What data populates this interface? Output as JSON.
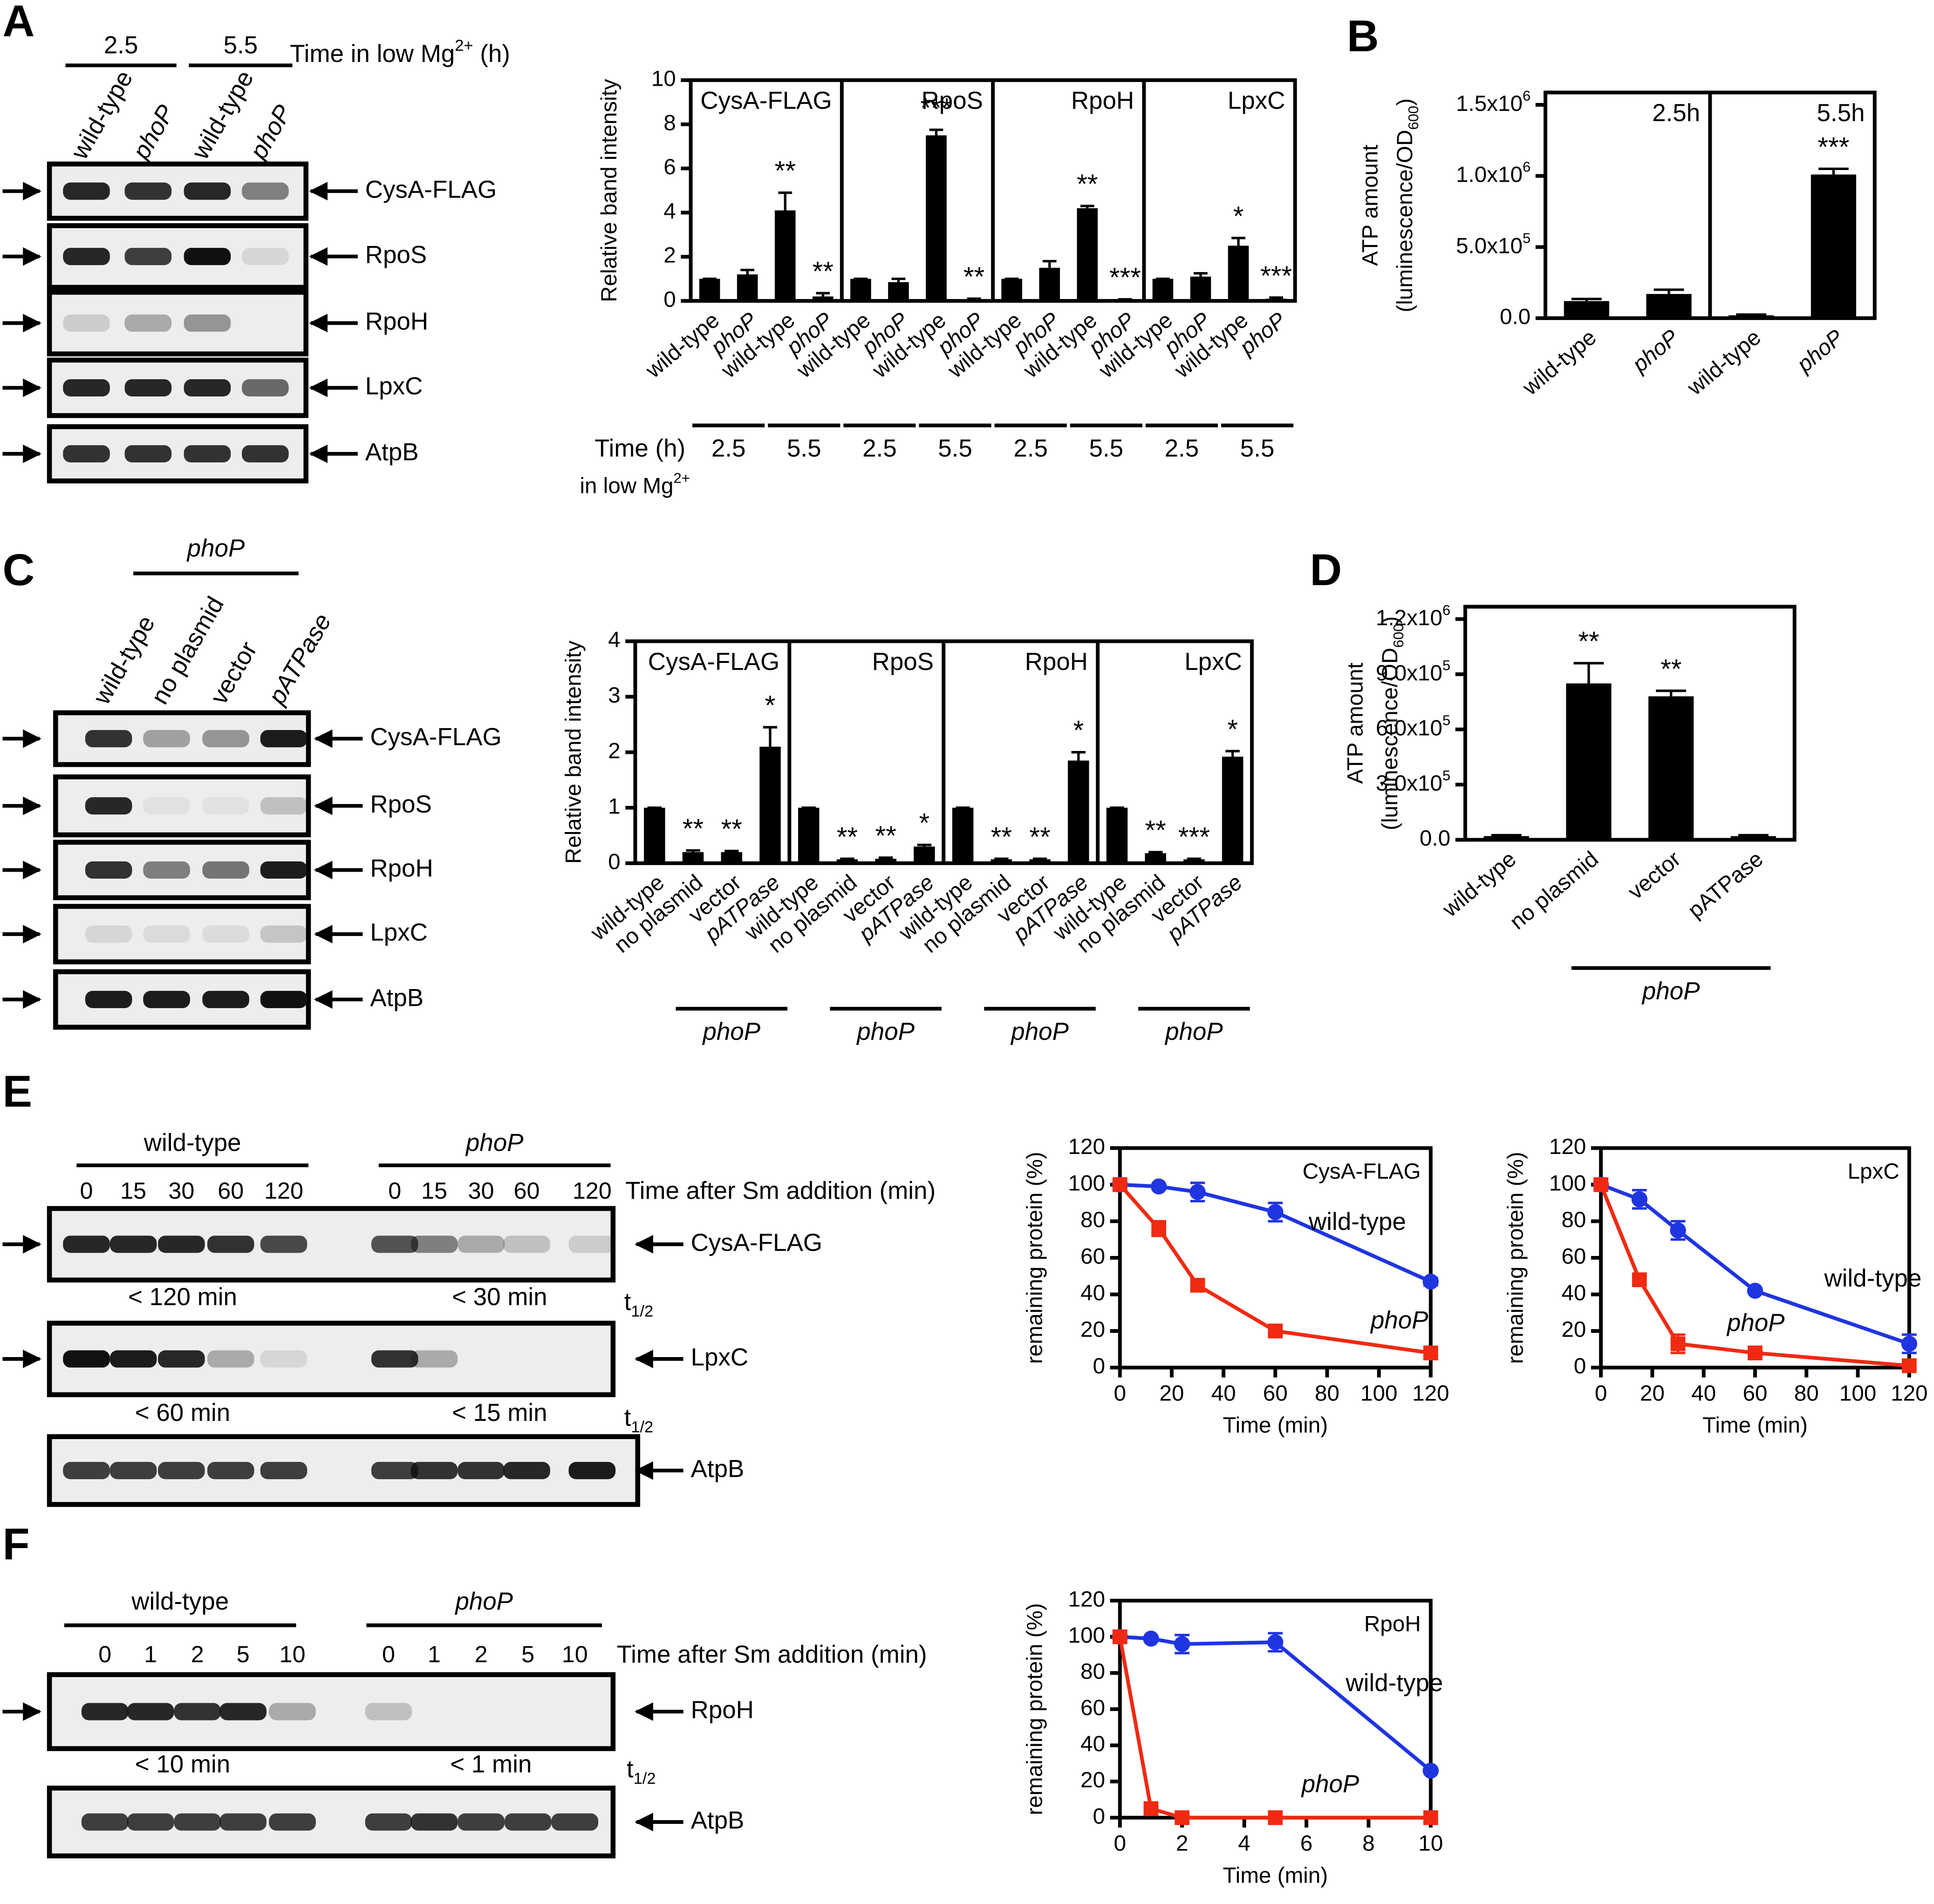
{
  "panel_labels": [
    "A",
    "B",
    "C",
    "D",
    "E",
    "F"
  ],
  "chart_data": [
    {
      "type": "bar",
      "ylabel": "Relative band intensity",
      "ylim": [
        0,
        10
      ],
      "yticks": [
        0,
        2,
        4,
        6,
        8,
        10
      ],
      "categories": [
        "wild-type",
        "phoP",
        "wild-type",
        "phoP"
      ],
      "italic_categories": [
        1,
        3
      ],
      "groups": [
        "2.5",
        "5.5"
      ],
      "x_caption": "Time (h)",
      "x_caption2": [
        "in low Mg",
        "2+"
      ],
      "color": "#000000",
      "facets": [
        {
          "title": "CysA-FLAG",
          "values": [
            1,
            1.2,
            4.1,
            0.2
          ],
          "errors": [
            0,
            0.2,
            0.8,
            0.15
          ],
          "significance": [
            null,
            null,
            "**",
            "**"
          ]
        },
        {
          "title": "RpoS",
          "values": [
            1,
            0.85,
            7.5,
            0.05
          ],
          "errors": [
            0,
            0.15,
            0.25,
            0.05
          ],
          "significance": [
            null,
            null,
            "***",
            "**"
          ]
        },
        {
          "title": "RpoH",
          "values": [
            1,
            1.5,
            4.2,
            0.05
          ],
          "errors": [
            0,
            0.3,
            0.1,
            0.02
          ],
          "significance": [
            null,
            null,
            "**",
            "***"
          ]
        },
        {
          "title": "LpxC",
          "values": [
            1,
            1.1,
            2.5,
            0.1
          ],
          "errors": [
            0,
            0.15,
            0.35,
            0.05
          ],
          "significance": [
            null,
            null,
            "*",
            "***"
          ]
        }
      ]
    },
    {
      "type": "bar",
      "ylabel": "ATP amount",
      "ylabel2": [
        "(luminescence/OD",
        "600",
        ")"
      ],
      "ylim": [
        0,
        1500000
      ],
      "yticks": [
        {
          "value": 0,
          "label": "0.0"
        },
        {
          "value": 500000,
          "label": "5.0x10",
          "exp": "5"
        },
        {
          "value": 1000000,
          "label": "1.0x10",
          "exp": "6"
        },
        {
          "value": 1500000,
          "label": "1.5x10",
          "exp": "6"
        }
      ],
      "categories": [
        "wild-type",
        "phoP"
      ],
      "italic_categories": [
        1
      ],
      "color": "#000000",
      "facets": [
        {
          "title": "2.5h",
          "values": [
            120000,
            170000
          ],
          "errors": [
            15000,
            30000
          ],
          "significance": [
            null,
            null
          ]
        },
        {
          "title": "5.5h",
          "values": [
            20000,
            1010000
          ],
          "errors": [
            5000,
            40000
          ],
          "significance": [
            null,
            "***"
          ]
        }
      ]
    },
    {
      "type": "bar",
      "ylabel": "Relative band intensity",
      "ylim": [
        0,
        4
      ],
      "yticks": [
        0,
        1,
        2,
        3,
        4
      ],
      "categories": [
        "wild-type",
        "no plasmid",
        "vector",
        "pATPase"
      ],
      "italic_categories": [
        3
      ],
      "groups": [
        "phoP"
      ],
      "italic_groups": [
        0
      ],
      "color": "#000000",
      "facets": [
        {
          "title": "CysA-FLAG",
          "values": [
            1,
            0.2,
            0.2,
            2.1
          ],
          "errors": [
            0,
            0.03,
            0.02,
            0.35
          ],
          "significance": [
            null,
            "**",
            "**",
            "*"
          ]
        },
        {
          "title": "RpoS",
          "values": [
            1,
            0.07,
            0.08,
            0.3
          ],
          "errors": [
            0,
            0.01,
            0.02,
            0.03
          ],
          "significance": [
            null,
            "**",
            "**",
            "*"
          ]
        },
        {
          "title": "RpoH",
          "values": [
            1,
            0.07,
            0.07,
            1.85
          ],
          "errors": [
            0,
            0.01,
            0.01,
            0.15
          ],
          "significance": [
            null,
            "**",
            "**",
            "*"
          ]
        },
        {
          "title": "LpxC",
          "values": [
            1,
            0.18,
            0.07,
            1.92
          ],
          "errors": [
            0,
            0.02,
            0.01,
            0.1
          ],
          "significance": [
            null,
            "**",
            "***",
            "*"
          ]
        }
      ]
    },
    {
      "type": "bar",
      "ylabel": "ATP amount",
      "ylabel2": [
        "(luminescence/OD",
        "600",
        ")"
      ],
      "ylim": [
        0,
        1200000
      ],
      "yticks": [
        {
          "value": 0,
          "label": "0.0"
        },
        {
          "value": 300000,
          "label": "3.0x10",
          "exp": "5"
        },
        {
          "value": 600000,
          "label": "6.0x10",
          "exp": "5"
        },
        {
          "value": 900000,
          "label": "9.0x10",
          "exp": "5"
        },
        {
          "value": 1200000,
          "label": "1.2x10",
          "exp": "6"
        }
      ],
      "categories": [
        "wild-type",
        "no plasmid",
        "vector",
        "pATPase"
      ],
      "groups": [
        "phoP"
      ],
      "italic_groups": [
        0
      ],
      "color": "#000000",
      "facets": [
        {
          "values": [
            20000,
            850000,
            780000,
            20000
          ],
          "errors": [
            5000,
            110000,
            30000,
            5000
          ],
          "significance": [
            null,
            "**",
            "**",
            null
          ]
        }
      ]
    },
    {
      "type": "line",
      "title": "CysA-FLAG",
      "xlabel": "Time (min)",
      "ylabel": "remaining protein (%)",
      "x": [
        0,
        15,
        30,
        60,
        120
      ],
      "xlim": [
        0,
        120
      ],
      "xticks": [
        0,
        20,
        40,
        60,
        80,
        100,
        120
      ],
      "ylim": [
        0,
        120
      ],
      "yticks": [
        0,
        20,
        40,
        60,
        80,
        100,
        120
      ],
      "series": [
        {
          "name": "wild-type",
          "color": "#1f35e0",
          "marker": "circle",
          "values": [
            100,
            99,
            96,
            85,
            47
          ],
          "errors": [
            0,
            1,
            5,
            5,
            2
          ]
        },
        {
          "name": "phoP",
          "color": "#f02a12",
          "marker": "square",
          "italic": true,
          "values": [
            100,
            76,
            45,
            20,
            8
          ],
          "errors": [
            0,
            4,
            2,
            2,
            2
          ]
        }
      ]
    },
    {
      "type": "line",
      "title": "LpxC",
      "xlabel": "Time (min)",
      "ylabel": "remaining protein (%)",
      "x": [
        0,
        15,
        30,
        60,
        120
      ],
      "xlim": [
        0,
        120
      ],
      "xticks": [
        0,
        20,
        40,
        60,
        80,
        100,
        120
      ],
      "ylim": [
        0,
        120
      ],
      "yticks": [
        0,
        20,
        40,
        60,
        80,
        100,
        120
      ],
      "series": [
        {
          "name": "wild-type",
          "color": "#1f35e0",
          "marker": "circle",
          "values": [
            100,
            92,
            75,
            42,
            13
          ],
          "errors": [
            0,
            5,
            5,
            1,
            5
          ]
        },
        {
          "name": "phoP",
          "color": "#f02a12",
          "marker": "square",
          "italic": true,
          "values": [
            100,
            48,
            13,
            8,
            1
          ],
          "errors": [
            0,
            2,
            5,
            1,
            1
          ]
        }
      ]
    },
    {
      "type": "line",
      "title": "RpoH",
      "xlabel": "Time (min)",
      "ylabel": "remaining protein (%)",
      "x": [
        0,
        1,
        2,
        5,
        10
      ],
      "xlim": [
        0,
        10
      ],
      "xticks": [
        0,
        2,
        4,
        6,
        8,
        10
      ],
      "ylim": [
        0,
        120
      ],
      "yticks": [
        0,
        20,
        40,
        60,
        80,
        100,
        120
      ],
      "series": [
        {
          "name": "wild-type",
          "color": "#1f35e0",
          "marker": "circle",
          "values": [
            100,
            99,
            96,
            97,
            26
          ],
          "errors": [
            0,
            1,
            5,
            5,
            1
          ]
        },
        {
          "name": "phoP",
          "color": "#f02a12",
          "marker": "square",
          "italic": true,
          "values": [
            100,
            5,
            0,
            0,
            0
          ],
          "errors": [
            0,
            1,
            0,
            0,
            0
          ]
        }
      ]
    }
  ],
  "blots": [
    {
      "groups": [
        "2.5",
        "5.5"
      ],
      "caption": [
        "Time in low Mg",
        "2+",
        " (h)"
      ],
      "lanes": [
        "wild-type",
        "phoP",
        "wild-type",
        "phoP"
      ],
      "italic_lanes": [
        1,
        3
      ],
      "proteins": [
        "CysA-FLAG",
        "RpoS",
        "RpoH",
        "LpxC",
        "AtpB"
      ]
    },
    {
      "groups": [
        "phoP"
      ],
      "italic_groups": [
        0
      ],
      "lanes": [
        "wild-type",
        "no plasmid",
        "vector",
        "pATPase"
      ],
      "italic_lanes": [
        3
      ],
      "proteins": [
        "CysA-FLAG",
        "RpoS",
        "RpoH",
        "LpxC",
        "AtpB"
      ]
    },
    {
      "groups": [
        "wild-type",
        "phoP"
      ],
      "italic_groups": [
        1
      ],
      "caption": [
        "Time after Sm addition (min)"
      ],
      "lanes": [
        "0",
        "15",
        "30",
        "60",
        "120",
        "0",
        "15",
        "30",
        "60",
        "120"
      ],
      "proteins": [
        "CysA-FLAG",
        "LpxC",
        "AtpB"
      ],
      "half_lives": [
        [
          "< 120 min",
          "< 30 min"
        ],
        [
          "< 60 min",
          "< 15 min"
        ]
      ],
      "t_half": [
        "t",
        "1/2"
      ]
    },
    {
      "groups": [
        "wild-type",
        "phoP"
      ],
      "italic_groups": [
        1
      ],
      "caption": [
        "Time after Sm addition (min)"
      ],
      "lanes": [
        "0",
        "1",
        "2",
        "5",
        "10",
        "0",
        "1",
        "2",
        "5",
        "10"
      ],
      "proteins": [
        "RpoH",
        "AtpB"
      ],
      "half_lives": [
        [
          "< 10 min",
          "< 1 min"
        ]
      ],
      "t_half": [
        "t",
        "1/2"
      ]
    }
  ]
}
